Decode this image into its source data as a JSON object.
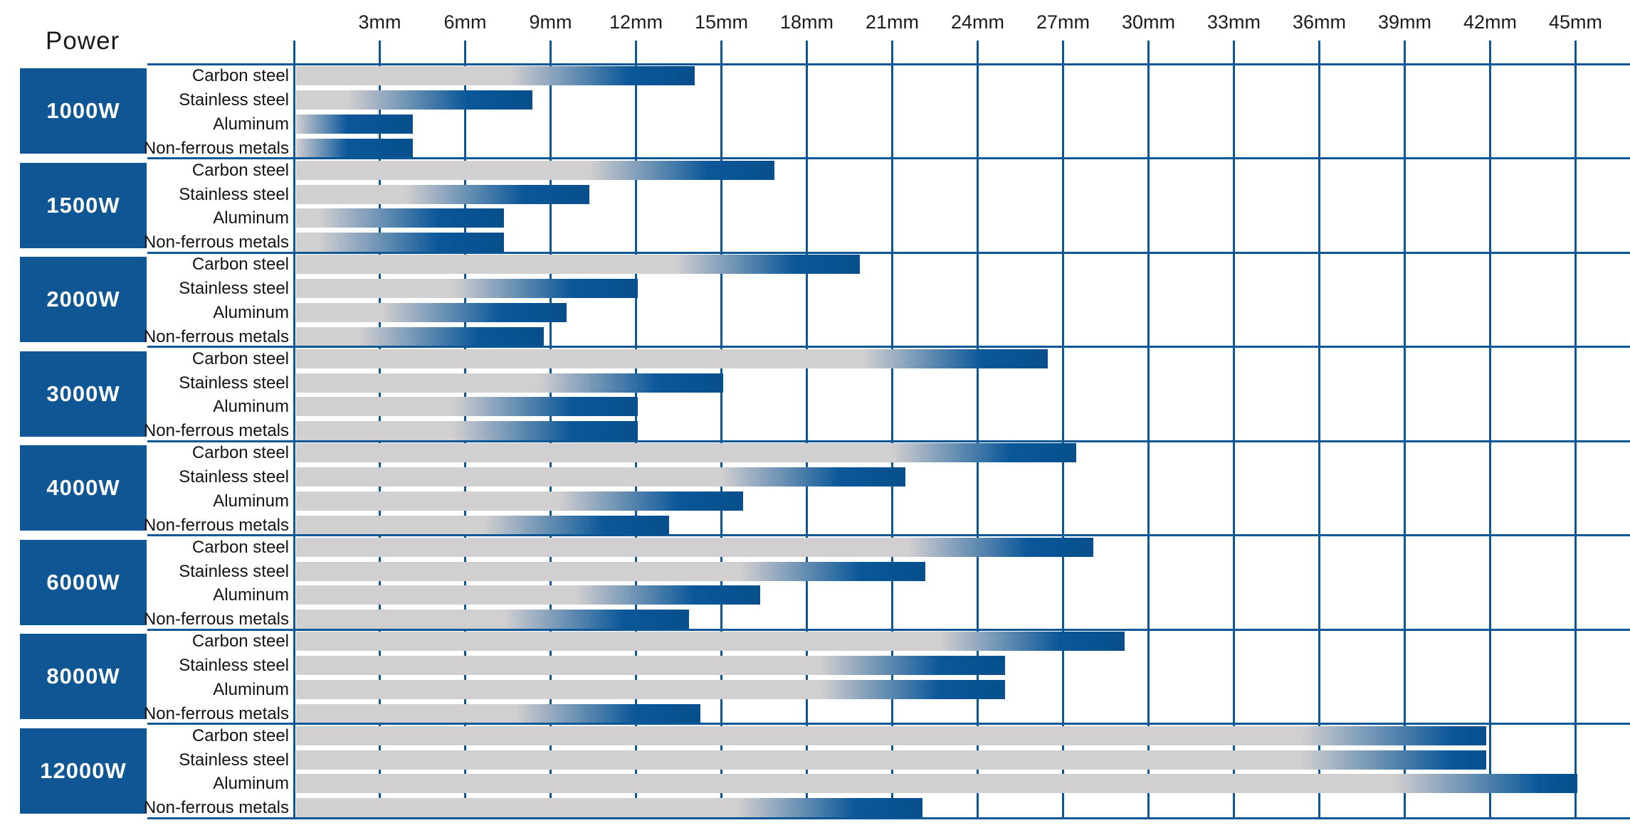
{
  "title": "Power",
  "axis_labels": [
    "3mm",
    "6mm",
    "9mm",
    "12mm",
    "15mm",
    "18mm",
    "21mm",
    "24mm",
    "27mm",
    "30mm",
    "33mm",
    "36mm",
    "39mm",
    "42mm",
    "45mm"
  ],
  "materials": [
    "Carbon steel",
    "Stainless steel",
    "Aluminum",
    "Non-ferrous metals"
  ],
  "powers": [
    "1000W",
    "1500W",
    "2000W",
    "3000W",
    "4000W",
    "6000W",
    "8000W",
    "12000W"
  ],
  "colors": {
    "grid_blue": "#0e5795",
    "bar_blue": "#0a5799",
    "bar_blue_dark": "#084f8c",
    "bar_gray": "#d2cfd0",
    "power_box_blue": "#0f5794",
    "text": "#1a1a1a"
  },
  "chart_data": {
    "type": "bar",
    "orientation": "horizontal",
    "title": "Power",
    "x_unit": "mm",
    "x_ticks_mm": [
      3,
      6,
      9,
      12,
      15,
      18,
      21,
      24,
      27,
      30,
      33,
      36,
      39,
      42,
      45
    ],
    "xlim_mm": [
      0,
      46.9
    ],
    "grid": true,
    "legend_position": "none",
    "materials": [
      "Carbon steel",
      "Stainless steel",
      "Aluminum",
      "Non-ferrous metals"
    ],
    "groups": [
      {
        "power": "1000W",
        "values_mm": [
          14.0,
          8.3,
          4.1,
          4.1
        ]
      },
      {
        "power": "1500W",
        "values_mm": [
          16.8,
          10.3,
          7.3,
          7.3
        ]
      },
      {
        "power": "2000W",
        "values_mm": [
          19.8,
          12.0,
          9.5,
          8.7
        ]
      },
      {
        "power": "3000W",
        "values_mm": [
          26.4,
          15.0,
          12.0,
          12.0
        ]
      },
      {
        "power": "4000W",
        "values_mm": [
          27.4,
          21.4,
          15.7,
          13.1
        ]
      },
      {
        "power": "6000W",
        "values_mm": [
          28.0,
          22.1,
          16.3,
          13.8
        ]
      },
      {
        "power": "8000W",
        "values_mm": [
          29.1,
          24.9,
          24.9,
          14.2
        ]
      },
      {
        "power": "12000W",
        "values_mm": [
          41.8,
          41.8,
          45.0,
          22.0
        ]
      }
    ]
  }
}
